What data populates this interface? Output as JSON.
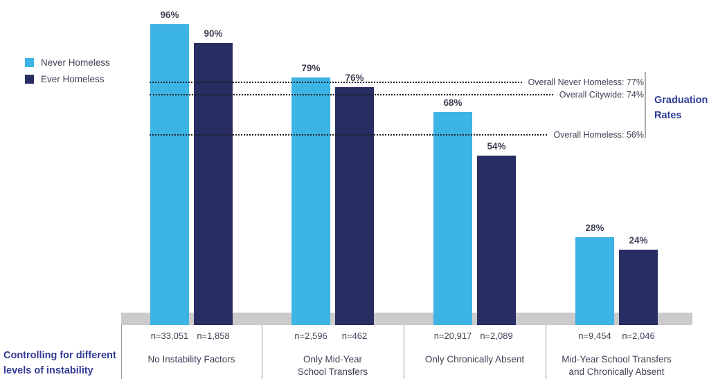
{
  "chart_data": {
    "type": "bar",
    "title": "",
    "legend": [
      {
        "label": "Never Homeless",
        "color": "#3CB4E5"
      },
      {
        "label": "Ever Homeless",
        "color": "#282D64"
      }
    ],
    "groups": [
      {
        "category_lines": [
          "No Instability Factors"
        ],
        "bars": [
          {
            "series": "Never Homeless",
            "value": 96,
            "value_label": "96%",
            "n_label": "n=33,051"
          },
          {
            "series": "Ever Homeless",
            "value": 90,
            "value_label": "90%",
            "n_label": "n=1,858"
          }
        ]
      },
      {
        "category_lines": [
          "Only Mid-Year",
          "School Transfers"
        ],
        "bars": [
          {
            "series": "Never Homeless",
            "value": 79,
            "value_label": "79%",
            "n_label": "n=2,596"
          },
          {
            "series": "Ever Homeless",
            "value": 76,
            "value_label": "76%",
            "n_label": "n=462"
          }
        ]
      },
      {
        "category_lines": [
          "Only Chronically Absent"
        ],
        "bars": [
          {
            "series": "Never Homeless",
            "value": 68,
            "value_label": "68%",
            "n_label": "n=20,917"
          },
          {
            "series": "Ever Homeless",
            "value": 54,
            "value_label": "54%",
            "n_label": "n=2,089"
          }
        ]
      },
      {
        "category_lines": [
          "Mid-Year School Transfers",
          "and Chronically Absent"
        ],
        "bars": [
          {
            "series": "Never Homeless",
            "value": 28,
            "value_label": "28%",
            "n_label": "n=9,454"
          },
          {
            "series": "Ever Homeless",
            "value": 24,
            "value_label": "24%",
            "n_label": "n=2,046"
          }
        ]
      }
    ],
    "reference_lines": [
      {
        "label": "Overall Never Homeless: 77%",
        "value": 77,
        "visual_pct": 77.5
      },
      {
        "label": "Overall Citywide: 74%",
        "value": 74,
        "visual_pct": 73.5
      },
      {
        "label": "Overall Homeless: 56%",
        "value": 56,
        "visual_pct": 60.7
      }
    ],
    "right_axis_label_lines": [
      "Graduation",
      "Rates"
    ],
    "bottom_left_label_lines": [
      "Controlling for different",
      "levels of instability"
    ],
    "ylim": [
      0,
      100
    ],
    "grid": false,
    "legend_position": "top-left"
  },
  "colors": {
    "never_homeless": "#3CB4E5",
    "ever_homeless": "#282D64",
    "text": "#3F4254",
    "heading_blue": "#2F3D96",
    "caption_blue": "#333A94",
    "baseline_band": "#CBCBCB",
    "divider": "#999999",
    "bracket": "#ACACAC",
    "dotted_line": "#1F1F1F"
  }
}
